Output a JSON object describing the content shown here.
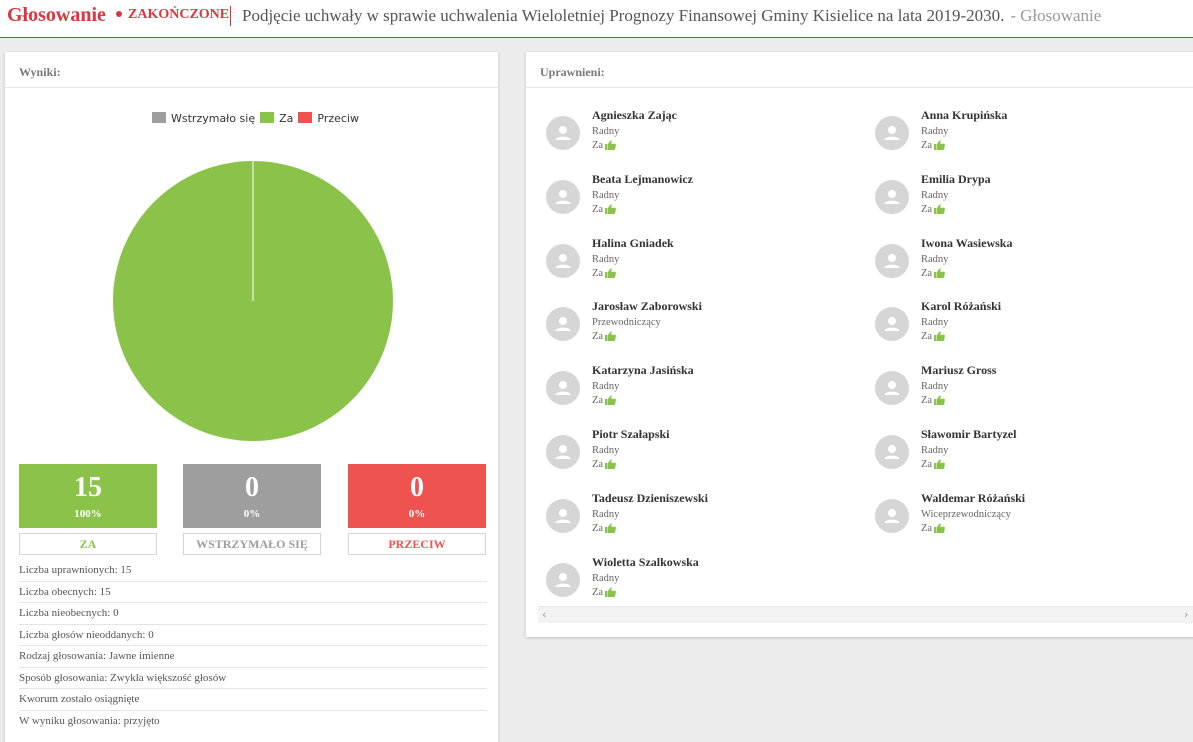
{
  "header": {
    "app_title": "Głosowanie",
    "status": "ZAKOŃCZONE",
    "doc_title": "Podjęcie uchwały w sprawie uchwalenia Wieloletniej Prognozy Finansowej Gminy Kisielice na lata 2019-2030.",
    "dash": "-",
    "crumb": "Głosowanie"
  },
  "results": {
    "panel_title": "Wyniki:",
    "legend": [
      {
        "label": "Wstrzymało się",
        "color": "#9e9e9e"
      },
      {
        "label": "Za",
        "color": "#8bc34a"
      },
      {
        "label": "Przeciw",
        "color": "#ef5350"
      }
    ],
    "tiles": [
      {
        "count": "15",
        "percent": "100%",
        "label": "ZA",
        "color": "#8bc34a"
      },
      {
        "count": "0",
        "percent": "0%",
        "label": "WSTRZYMAŁO SIĘ",
        "color": "#9e9e9e"
      },
      {
        "count": "0",
        "percent": "0%",
        "label": "PRZECIW",
        "color": "#ef5350"
      }
    ],
    "stats": [
      "Liczba uprawnionych: 15",
      "Liczba obecnych: 15",
      "Liczba nieobecnych: 0",
      "Liczba głosów nieoddanych: 0",
      "Rodzaj głosowania: Jawne imienne",
      "Sposób głosowania: Zwykła większość głosów",
      "Kworum zostało osiągnięte",
      "W wyniku głosowania: przyjęto"
    ]
  },
  "chart_data": {
    "type": "pie",
    "categories": [
      "Wstrzymało się",
      "Za",
      "Przeciw"
    ],
    "values": [
      0,
      15,
      0
    ],
    "colors": [
      "#9e9e9e",
      "#8bc34a",
      "#ef5350"
    ],
    "legend_position": "top"
  },
  "entitled": {
    "panel_title": "Uprawnieni:",
    "members": [
      {
        "name": "Agnieszka Zając",
        "role": "Radny",
        "vote": "Za"
      },
      {
        "name": "Anna Krupińska",
        "role": "Radny",
        "vote": "Za"
      },
      {
        "name": "Beata Lejmanowicz",
        "role": "Radny",
        "vote": "Za"
      },
      {
        "name": "Emilia Drypa",
        "role": "Radny",
        "vote": "Za"
      },
      {
        "name": "Halina Gniadek",
        "role": "Radny",
        "vote": "Za"
      },
      {
        "name": "Iwona Wasiewska",
        "role": "Radny",
        "vote": "Za"
      },
      {
        "name": "Jarosław Zaborowski",
        "role": "Przewodniczący",
        "vote": "Za"
      },
      {
        "name": "Karol Różański",
        "role": "Radny",
        "vote": "Za"
      },
      {
        "name": "Katarzyna Jasińska",
        "role": "Radny",
        "vote": "Za"
      },
      {
        "name": "Mariusz Gross",
        "role": "Radny",
        "vote": "Za"
      },
      {
        "name": "Piotr Szałapski",
        "role": "Radny",
        "vote": "Za"
      },
      {
        "name": "Sławomir Bartyzel",
        "role": "Radny",
        "vote": "Za"
      },
      {
        "name": "Tadeusz Dzieniszewski",
        "role": "Radny",
        "vote": "Za"
      },
      {
        "name": "Waldemar Różański",
        "role": "Wiceprzewodniczący",
        "vote": "Za"
      },
      {
        "name": "Wioletta Szalkowska",
        "role": "Radny",
        "vote": "Za"
      }
    ],
    "vote_icon": "thumbs-up-icon",
    "vote_icon_color": "#8bc34a",
    "avatar_icon": "user-avatar-icon"
  }
}
